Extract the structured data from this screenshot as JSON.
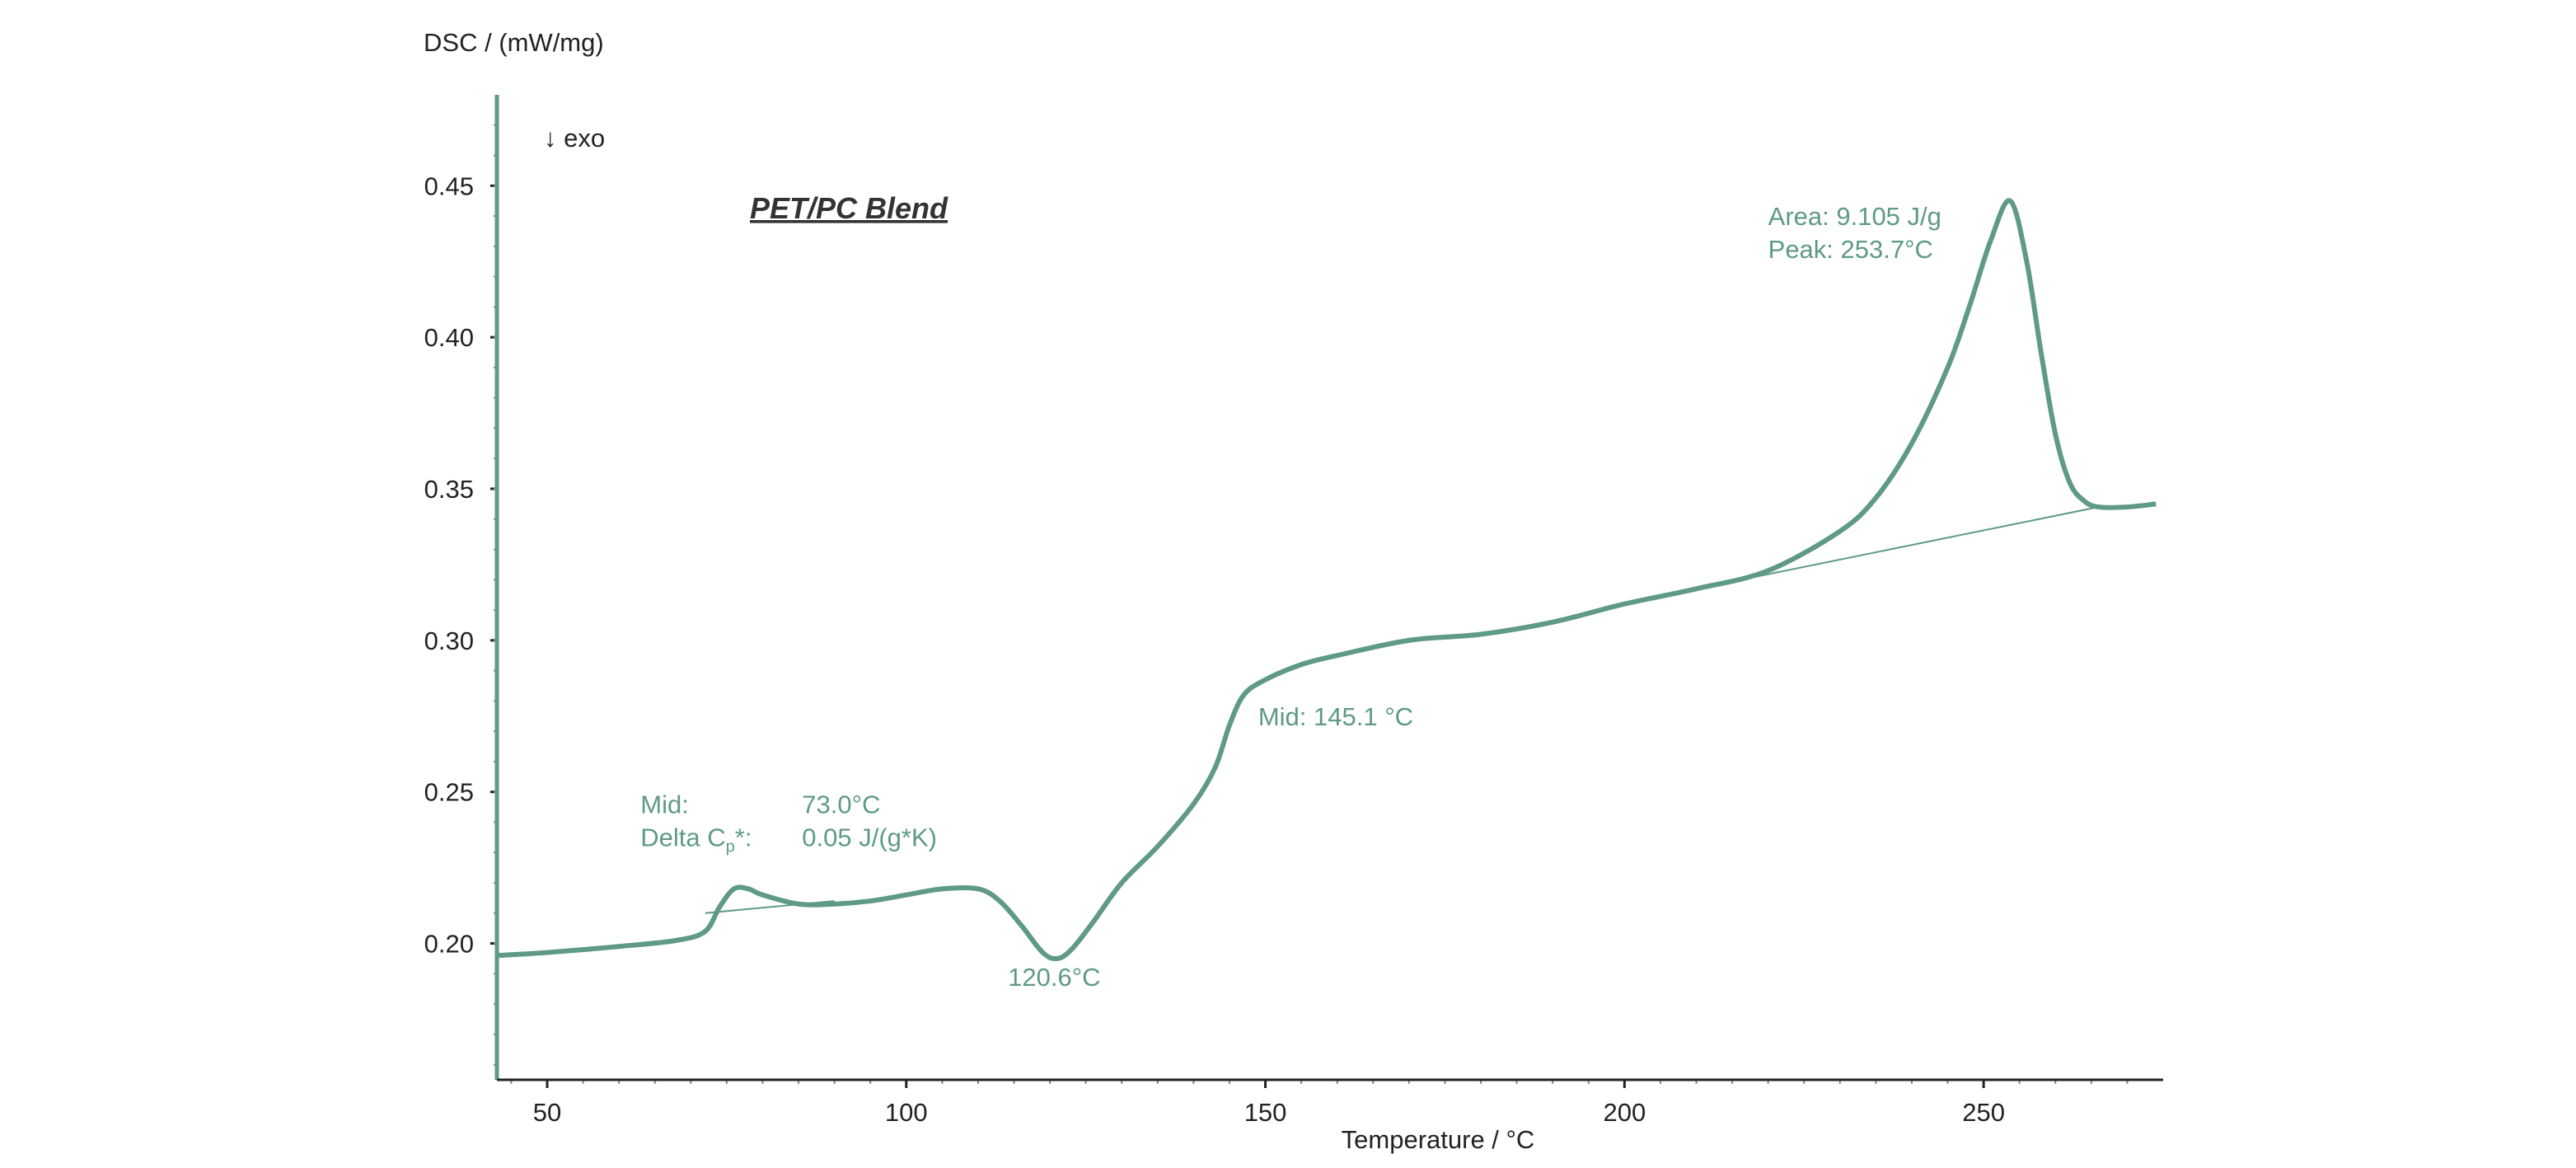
{
  "chart_data": {
    "type": "line",
    "title": "PET/PC Blend",
    "xlabel": "Temperature / °C",
    "ylabel": "DSC / (mW/mg)",
    "direction_note": "↓ exo",
    "xlim": [
      43,
      275
    ],
    "ylim": [
      0.155,
      0.48
    ],
    "x_ticks": [
      50,
      100,
      150,
      200,
      250
    ],
    "y_ticks": [
      0.2,
      0.25,
      0.3,
      0.35,
      0.4,
      0.45
    ],
    "colors": {
      "curve": "#5e9a84",
      "axis": "#5e9a84",
      "annotation": "#5e9a84"
    },
    "series": [
      {
        "points": [
          [
            43,
            0.196
          ],
          [
            50,
            0.197
          ],
          [
            60,
            0.199
          ],
          [
            68,
            0.201
          ],
          [
            72,
            0.204
          ],
          [
            74,
            0.212
          ],
          [
            76,
            0.218
          ],
          [
            78,
            0.218
          ],
          [
            80,
            0.216
          ],
          [
            85,
            0.213
          ],
          [
            90,
            0.213
          ],
          [
            95,
            0.214
          ],
          [
            100,
            0.216
          ],
          [
            105,
            0.218
          ],
          [
            110,
            0.218
          ],
          [
            113,
            0.214
          ],
          [
            116,
            0.206
          ],
          [
            119,
            0.197
          ],
          [
            121,
            0.195
          ],
          [
            123,
            0.198
          ],
          [
            126,
            0.207
          ],
          [
            130,
            0.22
          ],
          [
            135,
            0.232
          ],
          [
            140,
            0.246
          ],
          [
            143,
            0.258
          ],
          [
            145,
            0.272
          ],
          [
            147,
            0.282
          ],
          [
            150,
            0.287
          ],
          [
            155,
            0.292
          ],
          [
            160,
            0.295
          ],
          [
            170,
            0.3
          ],
          [
            180,
            0.302
          ],
          [
            190,
            0.306
          ],
          [
            200,
            0.312
          ],
          [
            210,
            0.317
          ],
          [
            220,
            0.323
          ],
          [
            230,
            0.336
          ],
          [
            235,
            0.347
          ],
          [
            240,
            0.365
          ],
          [
            245,
            0.39
          ],
          [
            248,
            0.41
          ],
          [
            251,
            0.432
          ],
          [
            253.7,
            0.445
          ],
          [
            256,
            0.425
          ],
          [
            258,
            0.395
          ],
          [
            260,
            0.368
          ],
          [
            262,
            0.352
          ],
          [
            264,
            0.346
          ],
          [
            266,
            0.344
          ],
          [
            270,
            0.344
          ],
          [
            274,
            0.345
          ]
        ]
      }
    ],
    "baselines": [
      {
        "points": [
          [
            72,
            0.21
          ],
          [
            90,
            0.214
          ]
        ]
      },
      {
        "points": [
          [
            210,
            0.317
          ],
          [
            266,
            0.344
          ]
        ]
      }
    ],
    "annotations": [
      {
        "lines": [
          "Mid:",
          "Delta Cp*:"
        ],
        "values": [
          "73.0°C",
          "0.05 J/(g*K)"
        ],
        "x": 63,
        "y": 0.243
      },
      {
        "lines": [
          "120.6°C"
        ],
        "x": 120.6,
        "y": 0.186
      },
      {
        "lines": [
          "Mid: 145.1 °C"
        ],
        "x": 149,
        "y": 0.272
      },
      {
        "lines": [
          "Area:  9.105 J/g",
          "Peak:  253.7°C"
        ],
        "x": 220,
        "y": 0.437
      }
    ]
  }
}
